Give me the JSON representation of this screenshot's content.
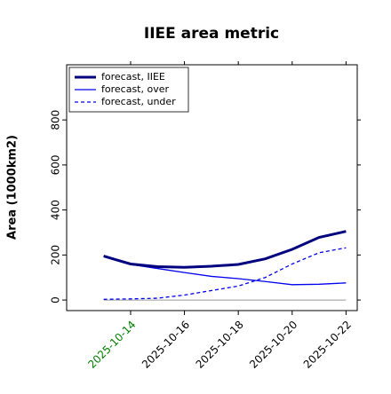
{
  "chart_data": {
    "type": "line",
    "title": "IIEE area metric",
    "y_label": "Area (1000km2)",
    "x": [
      "2025-10-13",
      "2025-10-14",
      "2025-10-15",
      "2025-10-16",
      "2025-10-17",
      "2025-10-18",
      "2025-10-19",
      "2025-10-20",
      "2025-10-21",
      "2025-10-22"
    ],
    "series": [
      {
        "name": "forecast, IIEE",
        "color": "#00007f",
        "width": 3,
        "dash": "solid",
        "values": [
          195,
          160,
          148,
          145,
          150,
          158,
          183,
          225,
          278,
          305
        ]
      },
      {
        "name": "forecast, over",
        "color": "#0000ee",
        "width": 1.3,
        "dash": "solid",
        "values": [
          195,
          158,
          140,
          122,
          105,
          95,
          82,
          68,
          70,
          76
        ]
      },
      {
        "name": "forecast, under",
        "color": "#0000ee",
        "width": 1.3,
        "dash": "dashed",
        "values": [
          3,
          5,
          8,
          22,
          42,
          62,
          100,
          160,
          210,
          232
        ]
      },
      {
        "color": "#999999",
        "width": 1,
        "dash": "solid",
        "values": [
          0,
          0,
          0,
          0,
          0,
          0,
          0,
          0,
          0,
          0
        ]
      }
    ],
    "xlim": [
      "2025-10-11T15:00",
      "2025-10-22T10:00"
    ],
    "xticks": [
      {
        "value": "2025-10-14",
        "label": "2025-10-14"
      },
      {
        "value": "2025-10-16",
        "label": "2025-10-16"
      },
      {
        "value": "2025-10-18",
        "label": "2025-10-18"
      },
      {
        "value": "2025-10-20",
        "label": "2025-10-20"
      },
      {
        "value": "2025-10-22",
        "label": "2025-10-22"
      }
    ],
    "xtick_label_colors": [
      "green",
      "black",
      "black",
      "black",
      "black"
    ],
    "ylim": [
      -47,
      1045
    ],
    "yticks": [
      0,
      200,
      400,
      600,
      800
    ],
    "legend": "upper left"
  }
}
